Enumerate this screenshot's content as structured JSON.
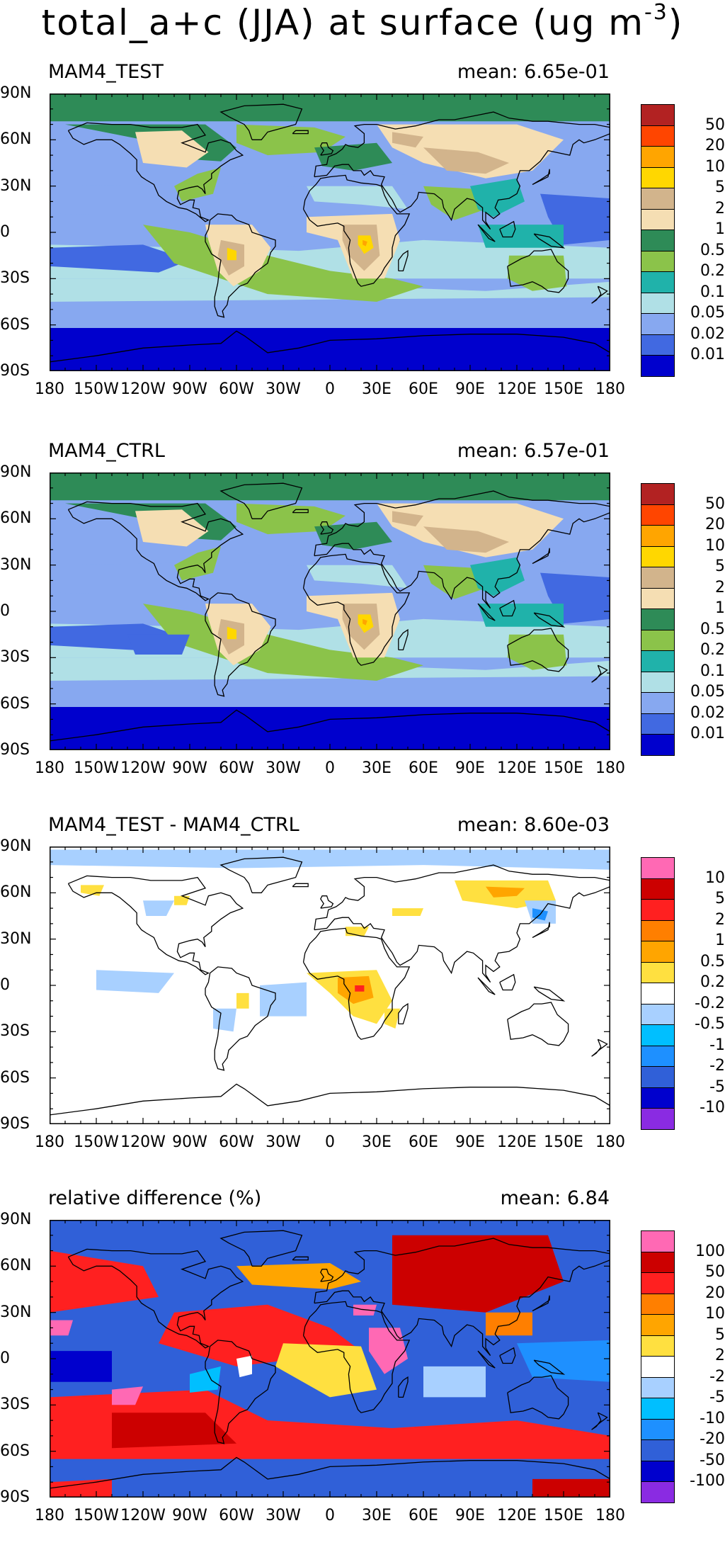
{
  "figure": {
    "title_main": "total_a+c (JJA) at surface (ug m",
    "title_sup": "-3",
    "title_end": ")"
  },
  "axes": {
    "lat_labels": [
      "90N",
      "60N",
      "30N",
      "0",
      "30S",
      "60S",
      "90S"
    ],
    "lon_labels": [
      "180",
      "150W",
      "120W",
      "90W",
      "60W",
      "30W",
      "0",
      "30E",
      "60E",
      "90E",
      "120E",
      "150E",
      "180"
    ]
  },
  "panels": [
    {
      "title": "MAM4_TEST",
      "mean_label": "mean:",
      "mean_value": "6.65e-01",
      "colorbar": {
        "colors": [
          "#b22222",
          "#ff4500",
          "#ffa500",
          "#ffd700",
          "#d2b48c",
          "#f5deb3",
          "#2e8b57",
          "#8bc34a",
          "#20b2aa",
          "#b0e0e6",
          "#87a8f0",
          "#4169e1",
          "#0000cd"
        ],
        "labels": [
          "50",
          "20",
          "10",
          "5",
          "2",
          "1",
          "0.5",
          "0.2",
          "0.1",
          "0.05",
          "0.02",
          "0.01"
        ]
      }
    },
    {
      "title": "MAM4_CTRL",
      "mean_label": "mean:",
      "mean_value": "6.57e-01",
      "colorbar": {
        "colors": [
          "#b22222",
          "#ff4500",
          "#ffa500",
          "#ffd700",
          "#d2b48c",
          "#f5deb3",
          "#2e8b57",
          "#8bc34a",
          "#20b2aa",
          "#b0e0e6",
          "#87a8f0",
          "#4169e1",
          "#0000cd"
        ],
        "labels": [
          "50",
          "20",
          "10",
          "5",
          "2",
          "1",
          "0.5",
          "0.2",
          "0.1",
          "0.05",
          "0.02",
          "0.01"
        ]
      }
    },
    {
      "title": "MAM4_TEST - MAM4_CTRL",
      "mean_label": "mean:",
      "mean_value": "8.60e-03",
      "colorbar": {
        "colors": [
          "#ff69b4",
          "#cc0000",
          "#ff2020",
          "#ff7f00",
          "#ffa500",
          "#ffe040",
          "#ffffff",
          "#a8d0ff",
          "#00bfff",
          "#1e90ff",
          "#3060d8",
          "#0000cd",
          "#8a2be2"
        ],
        "labels": [
          "10",
          "5",
          "2",
          "1",
          "0.5",
          "0.2",
          "-0.2",
          "-0.5",
          "-1",
          "-2",
          "-5",
          "-10"
        ]
      }
    },
    {
      "title": "relative difference (%)",
      "mean_label": "mean:",
      "mean_value": "6.84",
      "colorbar": {
        "colors": [
          "#ff69b4",
          "#cc0000",
          "#ff2020",
          "#ff7f00",
          "#ffa500",
          "#ffe040",
          "#ffffff",
          "#a8d0ff",
          "#00bfff",
          "#1e90ff",
          "#3060d8",
          "#0000cd",
          "#8a2be2"
        ],
        "labels": [
          "100",
          "50",
          "20",
          "10",
          "5",
          "2",
          "-2",
          "-5",
          "-10",
          "-20",
          "-50",
          "-100"
        ]
      }
    }
  ]
}
